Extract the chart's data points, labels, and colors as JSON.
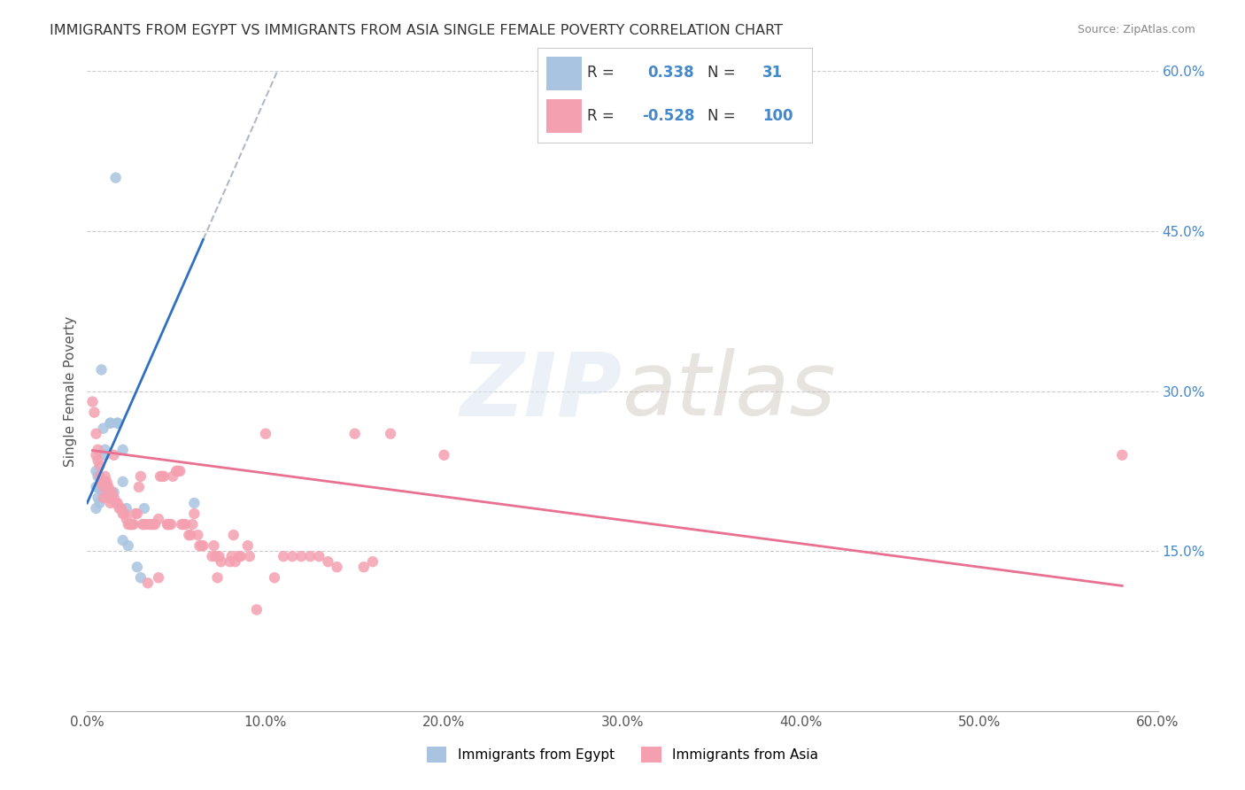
{
  "title": "IMMIGRANTS FROM EGYPT VS IMMIGRANTS FROM ASIA SINGLE FEMALE POVERTY CORRELATION CHART",
  "source": "Source: ZipAtlas.com",
  "xlabel": "",
  "ylabel": "Single Female Poverty",
  "x_min": 0.0,
  "x_max": 0.6,
  "y_min": 0.0,
  "y_max": 0.6,
  "x_ticks": [
    0.0,
    0.1,
    0.2,
    0.3,
    0.4,
    0.5,
    0.6
  ],
  "y_ticks": [
    0.15,
    0.3,
    0.45,
    0.6
  ],
  "y_tick_labels": [
    "15.0%",
    "30.0%",
    "45.0%",
    "60.0%"
  ],
  "x_tick_labels": [
    "0.0%",
    "10.0%",
    "20.0%",
    "30.0%",
    "40.0%",
    "50.0%",
    "60.0%"
  ],
  "egypt_R": 0.338,
  "egypt_N": 31,
  "asia_R": -0.528,
  "asia_N": 100,
  "egypt_color": "#a8c4e0",
  "asia_color": "#f4a0b0",
  "egypt_trend_color": "#3070c0",
  "asia_trend_color": "#e87090",
  "dashed_line_color": "#b0b8c8",
  "watermark": "ZIPatlas",
  "egypt_scatter": [
    [
      0.005,
      0.19
    ],
    [
      0.005,
      0.21
    ],
    [
      0.005,
      0.225
    ],
    [
      0.006,
      0.22
    ],
    [
      0.006,
      0.21
    ],
    [
      0.006,
      0.2
    ],
    [
      0.007,
      0.195
    ],
    [
      0.007,
      0.21
    ],
    [
      0.008,
      0.32
    ],
    [
      0.009,
      0.265
    ],
    [
      0.009,
      0.205
    ],
    [
      0.01,
      0.24
    ],
    [
      0.01,
      0.245
    ],
    [
      0.011,
      0.205
    ],
    [
      0.013,
      0.205
    ],
    [
      0.013,
      0.27
    ],
    [
      0.013,
      0.27
    ],
    [
      0.015,
      0.205
    ],
    [
      0.016,
      0.5
    ],
    [
      0.017,
      0.27
    ],
    [
      0.017,
      0.27
    ],
    [
      0.02,
      0.245
    ],
    [
      0.02,
      0.215
    ],
    [
      0.02,
      0.16
    ],
    [
      0.022,
      0.19
    ],
    [
      0.023,
      0.155
    ],
    [
      0.025,
      0.175
    ],
    [
      0.028,
      0.135
    ],
    [
      0.03,
      0.125
    ],
    [
      0.032,
      0.19
    ],
    [
      0.06,
      0.195
    ]
  ],
  "asia_scatter": [
    [
      0.003,
      0.29
    ],
    [
      0.004,
      0.28
    ],
    [
      0.005,
      0.26
    ],
    [
      0.005,
      0.24
    ],
    [
      0.006,
      0.245
    ],
    [
      0.006,
      0.235
    ],
    [
      0.007,
      0.23
    ],
    [
      0.007,
      0.22
    ],
    [
      0.008,
      0.215
    ],
    [
      0.008,
      0.215
    ],
    [
      0.009,
      0.21
    ],
    [
      0.009,
      0.2
    ],
    [
      0.01,
      0.22
    ],
    [
      0.01,
      0.215
    ],
    [
      0.011,
      0.215
    ],
    [
      0.011,
      0.21
    ],
    [
      0.012,
      0.21
    ],
    [
      0.012,
      0.2
    ],
    [
      0.013,
      0.2
    ],
    [
      0.013,
      0.195
    ],
    [
      0.014,
      0.205
    ],
    [
      0.015,
      0.24
    ],
    [
      0.015,
      0.2
    ],
    [
      0.016,
      0.195
    ],
    [
      0.017,
      0.195
    ],
    [
      0.018,
      0.19
    ],
    [
      0.019,
      0.19
    ],
    [
      0.02,
      0.185
    ],
    [
      0.021,
      0.185
    ],
    [
      0.022,
      0.18
    ],
    [
      0.023,
      0.175
    ],
    [
      0.024,
      0.175
    ],
    [
      0.025,
      0.175
    ],
    [
      0.026,
      0.175
    ],
    [
      0.027,
      0.185
    ],
    [
      0.028,
      0.185
    ],
    [
      0.029,
      0.21
    ],
    [
      0.03,
      0.22
    ],
    [
      0.031,
      0.175
    ],
    [
      0.032,
      0.175
    ],
    [
      0.033,
      0.175
    ],
    [
      0.034,
      0.12
    ],
    [
      0.035,
      0.175
    ],
    [
      0.036,
      0.175
    ],
    [
      0.037,
      0.175
    ],
    [
      0.038,
      0.175
    ],
    [
      0.04,
      0.125
    ],
    [
      0.04,
      0.18
    ],
    [
      0.041,
      0.22
    ],
    [
      0.042,
      0.22
    ],
    [
      0.043,
      0.22
    ],
    [
      0.045,
      0.175
    ],
    [
      0.045,
      0.175
    ],
    [
      0.046,
      0.175
    ],
    [
      0.047,
      0.175
    ],
    [
      0.048,
      0.22
    ],
    [
      0.05,
      0.225
    ],
    [
      0.051,
      0.225
    ],
    [
      0.052,
      0.225
    ],
    [
      0.053,
      0.175
    ],
    [
      0.054,
      0.175
    ],
    [
      0.055,
      0.175
    ],
    [
      0.057,
      0.165
    ],
    [
      0.058,
      0.165
    ],
    [
      0.059,
      0.175
    ],
    [
      0.06,
      0.185
    ],
    [
      0.062,
      0.165
    ],
    [
      0.063,
      0.155
    ],
    [
      0.064,
      0.155
    ],
    [
      0.065,
      0.155
    ],
    [
      0.07,
      0.145
    ],
    [
      0.071,
      0.155
    ],
    [
      0.072,
      0.145
    ],
    [
      0.073,
      0.125
    ],
    [
      0.074,
      0.145
    ],
    [
      0.075,
      0.14
    ],
    [
      0.08,
      0.14
    ],
    [
      0.081,
      0.145
    ],
    [
      0.082,
      0.165
    ],
    [
      0.083,
      0.14
    ],
    [
      0.085,
      0.145
    ],
    [
      0.086,
      0.145
    ],
    [
      0.09,
      0.155
    ],
    [
      0.091,
      0.145
    ],
    [
      0.095,
      0.095
    ],
    [
      0.1,
      0.26
    ],
    [
      0.105,
      0.125
    ],
    [
      0.11,
      0.145
    ],
    [
      0.115,
      0.145
    ],
    [
      0.12,
      0.145
    ],
    [
      0.125,
      0.145
    ],
    [
      0.13,
      0.145
    ],
    [
      0.135,
      0.14
    ],
    [
      0.14,
      0.135
    ],
    [
      0.15,
      0.26
    ],
    [
      0.155,
      0.135
    ],
    [
      0.16,
      0.14
    ],
    [
      0.17,
      0.26
    ],
    [
      0.2,
      0.24
    ],
    [
      0.58,
      0.24
    ]
  ]
}
